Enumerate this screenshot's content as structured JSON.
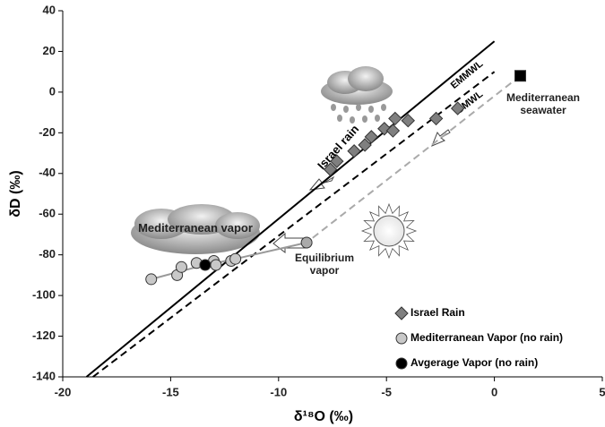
{
  "chart_data": {
    "type": "scatter",
    "xlabel": "δ¹⁸O (‰)",
    "ylabel": "δD (‰)",
    "xlim": [
      -20,
      5
    ],
    "ylim": [
      -140,
      40
    ],
    "xticks": [
      -20,
      -15,
      -10,
      -5,
      0,
      5
    ],
    "yticks": [
      -140,
      -120,
      -100,
      -80,
      -60,
      -40,
      -20,
      0,
      20,
      40
    ],
    "grid": false,
    "legend": "lower right",
    "series": [
      {
        "name": "Israel Rain",
        "marker": "diamond",
        "color": "#7f7f7f",
        "x": [
          -7.6,
          -7.3,
          -6.5,
          -6.0,
          -5.7,
          -5.1,
          -4.7,
          -4.6,
          -4.0,
          -2.7,
          -1.7
        ],
        "y": [
          -38,
          -34,
          -29,
          -26,
          -22,
          -18,
          -19,
          -13,
          -14,
          -13,
          -8
        ]
      },
      {
        "name": "Mediterranean Vapor (no rain)",
        "marker": "circle",
        "color": "#c8c8c8",
        "x": [
          -15.9,
          -14.7,
          -14.5,
          -13.8,
          -13.0,
          -12.9,
          -12.2,
          -12.0
        ],
        "y": [
          -92,
          -90,
          -86,
          -84,
          -83,
          -85,
          -83,
          -82
        ]
      },
      {
        "name": "Avgerage Vapor (no rain)",
        "marker": "circle",
        "color": "#000000",
        "x": [
          -13.4
        ],
        "y": [
          -85
        ]
      }
    ],
    "lines": [
      {
        "name": "EMMWL",
        "color": "#000000",
        "dash": false,
        "x": [
          -18.9,
          0
        ],
        "y": [
          -140,
          25
        ]
      },
      {
        "name": "GMWL",
        "color": "#000000",
        "dash": true,
        "x": [
          -18.6,
          0
        ],
        "y": [
          -140,
          10
        ]
      },
      {
        "color": "#aaaaaa",
        "dash": true,
        "x": [
          1.2,
          -8.7
        ],
        "y": [
          8,
          -74
        ]
      },
      {
        "color": "#999999",
        "dash": false,
        "x": [
          -15.9,
          -13.8,
          -12.0,
          -8.7
        ],
        "y": [
          -92,
          -86,
          -82,
          -74
        ]
      }
    ],
    "points": [
      {
        "marker": "square",
        "color": "#000000",
        "x": 1.2,
        "y": 8
      },
      {
        "marker": "circle",
        "color": "#aaaaaa",
        "x": -8.7,
        "y": -74
      }
    ],
    "annotations": [
      "Israel rain",
      "Mediterranean vapor",
      "Equilibrium vapor",
      "Mediterranean seawater"
    ]
  }
}
